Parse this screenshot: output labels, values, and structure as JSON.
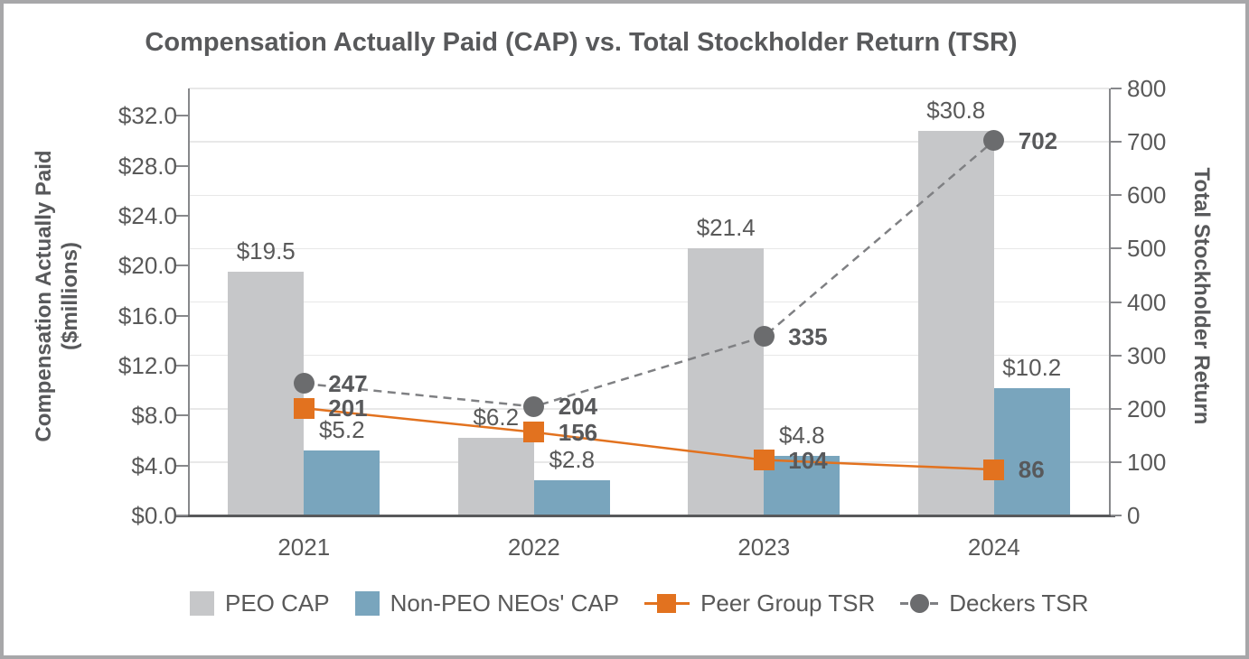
{
  "title": "Compensation Actually Paid (CAP) vs. Total Stockholder Return (TSR)",
  "chart_data": {
    "type": "combo (grouped bar + line, dual axis)",
    "categories": [
      "2021",
      "2022",
      "2023",
      "2024"
    ],
    "left_axis": {
      "title": "Compensation Actually Paid",
      "title_line2": "($millions)",
      "tick_labels": [
        "$0.0",
        "$4.0",
        "$8.0",
        "$12.0",
        "$16.0",
        "$20.0",
        "$24.0",
        "$28.0",
        "$32.0"
      ],
      "tick_values": [
        0,
        4,
        8,
        12,
        16,
        20,
        24,
        28,
        32
      ],
      "min": 0,
      "max": 34.2
    },
    "right_axis": {
      "title": "Total Stockholder Return",
      "tick_labels": [
        "0",
        "100",
        "200",
        "300",
        "400",
        "500",
        "600",
        "700",
        "800"
      ],
      "tick_values": [
        0,
        100,
        200,
        300,
        400,
        500,
        600,
        700,
        800
      ],
      "min": 0,
      "max": 800
    },
    "series": [
      {
        "name": "PEO CAP",
        "type": "bar",
        "axis": "left",
        "color": "#c6c7c9",
        "values": [
          19.5,
          6.2,
          21.4,
          30.8
        ],
        "labels": [
          "$19.5",
          "$6.2",
          "$21.4",
          "$30.8"
        ]
      },
      {
        "name": "Non-PEO NEOs' CAP",
        "type": "bar",
        "axis": "left",
        "color": "#79a5bd",
        "values": [
          5.2,
          2.8,
          4.8,
          10.2
        ],
        "labels": [
          "$5.2",
          "$2.8",
          "$4.8",
          "$10.2"
        ]
      },
      {
        "name": "Peer Group TSR",
        "type": "line",
        "axis": "right",
        "marker": "square",
        "line_style": "solid",
        "color": "#e2721f",
        "line_color": "#e2721f",
        "values": [
          201,
          156,
          104,
          86
        ],
        "labels": [
          "201",
          "156",
          "104",
          "86"
        ]
      },
      {
        "name": "Deckers TSR",
        "type": "line",
        "axis": "right",
        "marker": "circle",
        "line_style": "dashed",
        "color": "#6b6c6e",
        "line_color": "#7f8083",
        "values": [
          247,
          204,
          335,
          702
        ],
        "labels": [
          "247",
          "204",
          "335",
          "702"
        ]
      }
    ],
    "legend_position": "bottom",
    "grid": "horizontal gridlines at right-axis steps of 100"
  },
  "colors": {
    "text": "#595959",
    "axis_line": "#87888b",
    "x_axis_line": "#58595b",
    "gridline": "#e8e8e8",
    "frame_border": "#a7a7a9"
  }
}
